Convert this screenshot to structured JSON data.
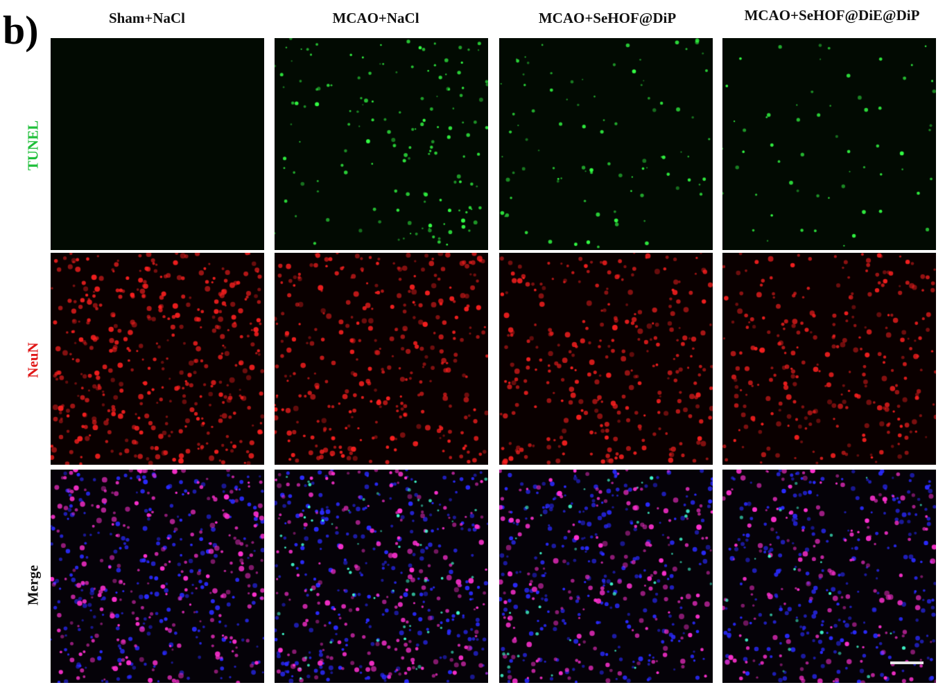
{
  "panel_label": "b)",
  "columns": [
    "Sham+NaCl",
    "MCAO+NaCl",
    "MCAO+SeHOF@DiP",
    "MCAO+SeHOF@DiE@DiP"
  ],
  "rows": [
    {
      "label": "TUNEL",
      "color": "#1fbf3a"
    },
    {
      "label": "NeuN",
      "color": "#e01818"
    },
    {
      "label": "Merge",
      "color": "#111111"
    }
  ],
  "stain_colors": {
    "tunel": "#33ff44",
    "neun": "#ff2020",
    "dapi": "#2a2aff",
    "merge": "#ff30d0"
  },
  "scale_bar": true
}
